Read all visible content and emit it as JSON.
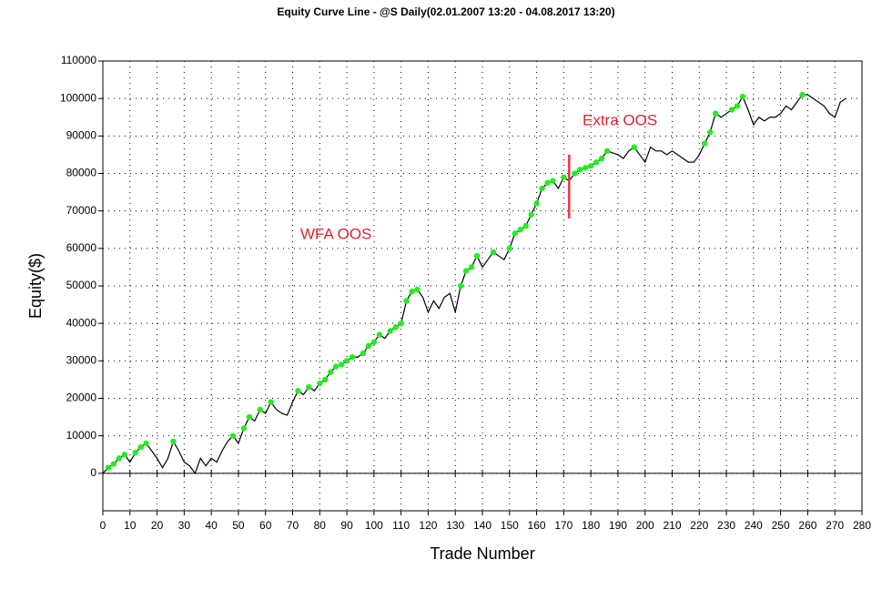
{
  "chart_data": {
    "type": "line",
    "title": "Equity Curve Line - @S Daily(02.01.2007 13:20 - 04.08.2017 13:20)",
    "xlabel": "Trade Number",
    "ylabel": "Equity($)",
    "x": [
      0,
      2,
      4,
      6,
      8,
      10,
      12,
      14,
      16,
      18,
      20,
      22,
      24,
      26,
      28,
      30,
      32,
      34,
      36,
      38,
      40,
      42,
      44,
      46,
      48,
      50,
      52,
      54,
      56,
      58,
      60,
      62,
      64,
      66,
      68,
      70,
      72,
      74,
      76,
      78,
      80,
      82,
      84,
      86,
      88,
      90,
      92,
      94,
      96,
      98,
      100,
      102,
      104,
      106,
      108,
      110,
      112,
      114,
      116,
      118,
      120,
      122,
      124,
      126,
      128,
      130,
      132,
      134,
      136,
      138,
      140,
      142,
      144,
      146,
      148,
      150,
      152,
      154,
      156,
      158,
      160,
      162,
      164,
      166,
      168,
      170,
      172,
      174,
      176,
      178,
      180,
      182,
      184,
      186,
      188,
      190,
      192,
      194,
      196,
      198,
      200,
      202,
      204,
      206,
      208,
      210,
      212,
      214,
      216,
      218,
      220,
      222,
      224,
      226,
      228,
      230,
      232,
      234,
      236,
      238,
      240,
      242,
      244,
      246,
      248,
      250,
      252,
      254,
      256,
      258,
      260,
      262,
      264,
      266,
      268,
      270,
      272,
      274
    ],
    "series": [
      {
        "color": "#000000",
        "marker_color": "#22ee22",
        "values": [
          0,
          1500,
          2500,
          4000,
          5000,
          3000,
          5500,
          7000,
          8000,
          6000,
          4000,
          1500,
          4000,
          8500,
          6000,
          3000,
          2000,
          0,
          4000,
          2000,
          4000,
          3000,
          6000,
          8500,
          10000,
          8000,
          12000,
          15000,
          14000,
          17000,
          16000,
          19000,
          17000,
          16000,
          15500,
          19000,
          22000,
          21000,
          23000,
          22000,
          24000,
          25000,
          27000,
          28500,
          29000,
          30000,
          31000,
          31000,
          32000,
          34000,
          35000,
          37000,
          36000,
          38000,
          39000,
          40000,
          46000,
          48500,
          49000,
          47000,
          43000,
          46000,
          44000,
          47000,
          48000,
          43000,
          50000,
          54000,
          55000,
          58000,
          55000,
          57000,
          59000,
          58000,
          57000,
          60000,
          64000,
          65000,
          66000,
          69000,
          72000,
          76000,
          77500,
          78000,
          76000,
          79000,
          78000,
          80000,
          81000,
          81500,
          82000,
          83000,
          84000,
          86000,
          85500,
          85000,
          84000,
          86000,
          87000,
          85000,
          83000,
          87000,
          86000,
          86000,
          85000,
          86000,
          85000,
          84000,
          83000,
          83000,
          85000,
          88000,
          91000,
          96000,
          95000,
          96000,
          97000,
          98000,
          100500,
          97000,
          93000,
          95000,
          94000,
          95000,
          95000,
          96000,
          98000,
          97000,
          99000,
          101000,
          101000,
          100000,
          99000,
          98000,
          96000,
          95000,
          99000,
          100000
        ]
      }
    ],
    "xlim": [
      0,
      280
    ],
    "xticks": [
      0,
      10,
      20,
      30,
      40,
      50,
      60,
      70,
      80,
      90,
      100,
      110,
      120,
      130,
      140,
      150,
      160,
      170,
      180,
      190,
      200,
      210,
      220,
      230,
      240,
      250,
      260,
      270,
      280
    ],
    "ylim": [
      -10000,
      110000
    ],
    "yticks": [
      0,
      10000,
      20000,
      30000,
      40000,
      50000,
      60000,
      70000,
      80000,
      90000,
      100000,
      110000
    ],
    "grid": true,
    "annotations": [
      {
        "text": "WFA OOS",
        "color": "#dd2233"
      },
      {
        "text": "Extra OOS",
        "color": "#dd2233"
      }
    ],
    "marker_line": {
      "x": 172,
      "y": [
        68000,
        85000
      ],
      "color": "#ee3344"
    }
  }
}
